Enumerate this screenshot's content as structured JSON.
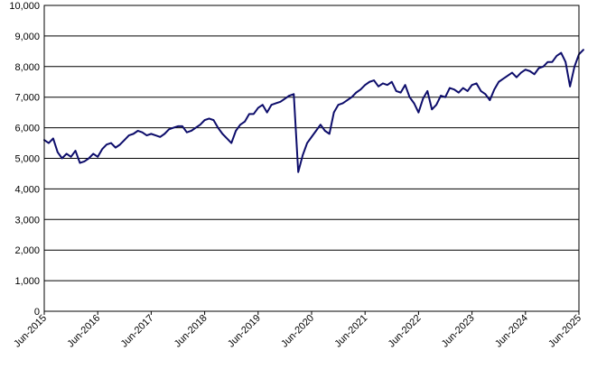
{
  "chart_data": {
    "type": "line",
    "title": "",
    "xlabel": "",
    "ylabel": "",
    "ylim": [
      0,
      10000
    ],
    "y_ticks": [
      "0",
      "1,000",
      "2,000",
      "3,000",
      "4,000",
      "5,000",
      "6,000",
      "7,000",
      "8,000",
      "9,000",
      "10,000"
    ],
    "x_ticks": [
      "Jun-2015",
      "Jun-2016",
      "Jun-2017",
      "Jun-2018",
      "Jun-2019",
      "Jun-2020",
      "Jun-2021",
      "Jun-2022",
      "Jun-2023",
      "Jun-2024",
      "Jun-2025"
    ],
    "grid": true,
    "legend": "none",
    "series": [
      {
        "color": "#0d0d6b",
        "points": [
          [
            "2015-06",
            5600
          ],
          [
            "2015-07",
            5500
          ],
          [
            "2015-08",
            5650
          ],
          [
            "2015-09",
            5200
          ],
          [
            "2015-10",
            5000
          ],
          [
            "2015-11",
            5150
          ],
          [
            "2015-12",
            5050
          ],
          [
            "2016-01",
            5250
          ],
          [
            "2016-02",
            4850
          ],
          [
            "2016-03",
            4900
          ],
          [
            "2016-04",
            5000
          ],
          [
            "2016-05",
            5150
          ],
          [
            "2016-06",
            5050
          ],
          [
            "2016-07",
            5300
          ],
          [
            "2016-08",
            5450
          ],
          [
            "2016-09",
            5500
          ],
          [
            "2016-10",
            5350
          ],
          [
            "2016-11",
            5450
          ],
          [
            "2016-12",
            5600
          ],
          [
            "2017-01",
            5750
          ],
          [
            "2017-02",
            5800
          ],
          [
            "2017-03",
            5900
          ],
          [
            "2017-04",
            5850
          ],
          [
            "2017-05",
            5750
          ],
          [
            "2017-06",
            5800
          ],
          [
            "2017-07",
            5750
          ],
          [
            "2017-08",
            5700
          ],
          [
            "2017-09",
            5800
          ],
          [
            "2017-10",
            5950
          ],
          [
            "2017-11",
            6000
          ],
          [
            "2017-12",
            6050
          ],
          [
            "2018-01",
            6050
          ],
          [
            "2018-02",
            5850
          ],
          [
            "2018-03",
            5900
          ],
          [
            "2018-04",
            6000
          ],
          [
            "2018-05",
            6100
          ],
          [
            "2018-06",
            6250
          ],
          [
            "2018-07",
            6300
          ],
          [
            "2018-08",
            6250
          ],
          [
            "2018-09",
            6000
          ],
          [
            "2018-10",
            5800
          ],
          [
            "2018-11",
            5650
          ],
          [
            "2018-12",
            5500
          ],
          [
            "2019-01",
            5900
          ],
          [
            "2019-02",
            6100
          ],
          [
            "2019-03",
            6200
          ],
          [
            "2019-04",
            6450
          ],
          [
            "2019-05",
            6450
          ],
          [
            "2019-06",
            6650
          ],
          [
            "2019-07",
            6750
          ],
          [
            "2019-08",
            6500
          ],
          [
            "2019-09",
            6750
          ],
          [
            "2019-10",
            6800
          ],
          [
            "2019-11",
            6850
          ],
          [
            "2019-12",
            6950
          ],
          [
            "2020-01",
            7050
          ],
          [
            "2020-02",
            7100
          ],
          [
            "2020-03",
            4550
          ],
          [
            "2020-04",
            5100
          ],
          [
            "2020-05",
            5500
          ],
          [
            "2020-06",
            5700
          ],
          [
            "2020-07",
            5900
          ],
          [
            "2020-08",
            6100
          ],
          [
            "2020-09",
            5900
          ],
          [
            "2020-10",
            5800
          ],
          [
            "2020-11",
            6500
          ],
          [
            "2020-12",
            6750
          ],
          [
            "2021-01",
            6800
          ],
          [
            "2021-02",
            6900
          ],
          [
            "2021-03",
            7000
          ],
          [
            "2021-04",
            7150
          ],
          [
            "2021-05",
            7250
          ],
          [
            "2021-06",
            7400
          ],
          [
            "2021-07",
            7500
          ],
          [
            "2021-08",
            7550
          ],
          [
            "2021-09",
            7350
          ],
          [
            "2021-10",
            7450
          ],
          [
            "2021-11",
            7400
          ],
          [
            "2021-12",
            7500
          ],
          [
            "2022-01",
            7200
          ],
          [
            "2022-02",
            7150
          ],
          [
            "2022-03",
            7400
          ],
          [
            "2022-04",
            7000
          ],
          [
            "2022-05",
            6800
          ],
          [
            "2022-06",
            6500
          ],
          [
            "2022-07",
            6950
          ],
          [
            "2022-08",
            7200
          ],
          [
            "2022-09",
            6600
          ],
          [
            "2022-10",
            6750
          ],
          [
            "2022-11",
            7050
          ],
          [
            "2022-12",
            7000
          ],
          [
            "2023-01",
            7300
          ],
          [
            "2023-02",
            7250
          ],
          [
            "2023-03",
            7150
          ],
          [
            "2023-04",
            7300
          ],
          [
            "2023-05",
            7200
          ],
          [
            "2023-06",
            7400
          ],
          [
            "2023-07",
            7450
          ],
          [
            "2023-08",
            7200
          ],
          [
            "2023-09",
            7100
          ],
          [
            "2023-10",
            6900
          ],
          [
            "2023-11",
            7250
          ],
          [
            "2023-12",
            7500
          ],
          [
            "2024-01",
            7600
          ],
          [
            "2024-02",
            7700
          ],
          [
            "2024-03",
            7800
          ],
          [
            "2024-04",
            7650
          ],
          [
            "2024-05",
            7800
          ],
          [
            "2024-06",
            7900
          ],
          [
            "2024-07",
            7850
          ],
          [
            "2024-08",
            7750
          ],
          [
            "2024-09",
            7950
          ],
          [
            "2024-10",
            8000
          ],
          [
            "2024-11",
            8150
          ],
          [
            "2024-12",
            8150
          ],
          [
            "2025-01",
            8350
          ],
          [
            "2025-02",
            8450
          ],
          [
            "2025-03",
            8150
          ],
          [
            "2025-04",
            7350
          ],
          [
            "2025-05",
            8000
          ],
          [
            "2025-06",
            8400
          ],
          [
            "2025-07",
            8550
          ]
        ]
      }
    ]
  }
}
